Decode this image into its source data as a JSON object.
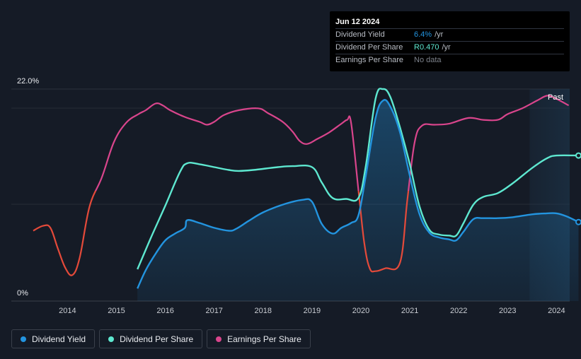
{
  "chart_data": {
    "type": "line",
    "y_axis": {
      "top_label": "22.0%",
      "bottom_label": "0%",
      "ylim": [
        0,
        22
      ]
    },
    "x_axis": {
      "ticks": [
        "2014",
        "2015",
        "2016",
        "2017",
        "2018",
        "2019",
        "2020",
        "2021",
        "2022",
        "2023",
        "2024"
      ],
      "xlim": [
        2013.3,
        2024.45
      ]
    },
    "past_label": "Past",
    "past_region_start": 2023.45,
    "series": [
      {
        "name": "Dividend Yield",
        "color": "#2394df",
        "fill": true,
        "end_marker": true,
        "points": [
          [
            2015.43,
            1.3
          ],
          [
            2015.6,
            3.2
          ],
          [
            2015.8,
            4.9
          ],
          [
            2016.0,
            6.3
          ],
          [
            2016.2,
            7.0
          ],
          [
            2016.4,
            7.6
          ],
          [
            2016.45,
            8.4
          ],
          [
            2016.7,
            8.1
          ],
          [
            2017.0,
            7.6
          ],
          [
            2017.3,
            7.3
          ],
          [
            2017.45,
            7.5
          ],
          [
            2017.7,
            8.3
          ],
          [
            2018.0,
            9.2
          ],
          [
            2018.4,
            10.0
          ],
          [
            2018.8,
            10.5
          ],
          [
            2019.0,
            10.3
          ],
          [
            2019.2,
            8.0
          ],
          [
            2019.42,
            7.0
          ],
          [
            2019.6,
            7.6
          ],
          [
            2019.8,
            8.1
          ],
          [
            2019.95,
            8.9
          ],
          [
            2020.1,
            13.0
          ],
          [
            2020.3,
            19.0
          ],
          [
            2020.45,
            20.8
          ],
          [
            2020.6,
            20.2
          ],
          [
            2020.8,
            17.5
          ],
          [
            2021.0,
            13.0
          ],
          [
            2021.2,
            9.0
          ],
          [
            2021.4,
            7.1
          ],
          [
            2021.6,
            6.6
          ],
          [
            2021.8,
            6.4
          ],
          [
            2021.95,
            6.3
          ],
          [
            2022.1,
            7.2
          ],
          [
            2022.3,
            8.5
          ],
          [
            2022.5,
            8.6
          ],
          [
            2022.8,
            8.6
          ],
          [
            2023.1,
            8.7
          ],
          [
            2023.5,
            9.0
          ],
          [
            2023.8,
            9.1
          ],
          [
            2024.0,
            9.1
          ],
          [
            2024.2,
            8.8
          ],
          [
            2024.45,
            8.2
          ]
        ]
      },
      {
        "name": "Dividend Per Share",
        "color": "#5ee8d0",
        "fill": false,
        "end_marker": true,
        "points": [
          [
            2015.43,
            3.3
          ],
          [
            2015.7,
            6.5
          ],
          [
            2016.0,
            9.9
          ],
          [
            2016.3,
            13.4
          ],
          [
            2016.45,
            14.3
          ],
          [
            2016.7,
            14.2
          ],
          [
            2017.0,
            13.9
          ],
          [
            2017.3,
            13.6
          ],
          [
            2017.5,
            13.5
          ],
          [
            2017.8,
            13.6
          ],
          [
            2018.3,
            13.9
          ],
          [
            2018.6,
            14.0
          ],
          [
            2019.0,
            13.9
          ],
          [
            2019.2,
            12.3
          ],
          [
            2019.42,
            10.7
          ],
          [
            2019.7,
            10.6
          ],
          [
            2019.95,
            10.7
          ],
          [
            2020.1,
            14.0
          ],
          [
            2020.3,
            21.0
          ],
          [
            2020.45,
            22.0
          ],
          [
            2020.6,
            21.2
          ],
          [
            2020.8,
            18.0
          ],
          [
            2021.0,
            14.2
          ],
          [
            2021.2,
            9.8
          ],
          [
            2021.4,
            7.4
          ],
          [
            2021.6,
            6.9
          ],
          [
            2021.8,
            6.8
          ],
          [
            2021.95,
            6.8
          ],
          [
            2022.1,
            8.1
          ],
          [
            2022.3,
            10.0
          ],
          [
            2022.5,
            10.8
          ],
          [
            2022.8,
            11.2
          ],
          [
            2023.1,
            12.2
          ],
          [
            2023.5,
            13.8
          ],
          [
            2023.8,
            14.8
          ],
          [
            2024.0,
            15.1
          ],
          [
            2024.45,
            15.1
          ]
        ]
      },
      {
        "name": "Earnings Per Share",
        "color": "#d9458c",
        "color_neg": "#e44a3a",
        "fill": false,
        "end_marker": false,
        "points": [
          [
            2013.3,
            7.3
          ],
          [
            2013.5,
            7.8
          ],
          [
            2013.65,
            7.6
          ],
          [
            2013.8,
            5.5
          ],
          [
            2013.95,
            3.5
          ],
          [
            2014.1,
            2.7
          ],
          [
            2014.25,
            4.5
          ],
          [
            2014.45,
            9.8
          ],
          [
            2014.7,
            12.8
          ],
          [
            2014.95,
            16.5
          ],
          [
            2015.2,
            18.5
          ],
          [
            2015.45,
            19.4
          ],
          [
            2015.6,
            19.8
          ],
          [
            2015.8,
            20.5
          ],
          [
            2015.95,
            20.3
          ],
          [
            2016.1,
            19.8
          ],
          [
            2016.4,
            19.1
          ],
          [
            2016.7,
            18.6
          ],
          [
            2016.85,
            18.3
          ],
          [
            2017.0,
            18.6
          ],
          [
            2017.2,
            19.3
          ],
          [
            2017.5,
            19.8
          ],
          [
            2017.9,
            20.0
          ],
          [
            2018.1,
            19.5
          ],
          [
            2018.4,
            18.6
          ],
          [
            2018.6,
            17.6
          ],
          [
            2018.75,
            16.6
          ],
          [
            2018.9,
            16.3
          ],
          [
            2019.1,
            16.8
          ],
          [
            2019.35,
            17.5
          ],
          [
            2019.6,
            18.4
          ],
          [
            2019.72,
            18.8
          ],
          [
            2019.8,
            18.5
          ],
          [
            2019.95,
            11.5
          ],
          [
            2020.07,
            6.0
          ],
          [
            2020.18,
            3.4
          ],
          [
            2020.3,
            3.1
          ],
          [
            2020.5,
            3.4
          ],
          [
            2020.8,
            4.0
          ],
          [
            2020.95,
            10.5
          ],
          [
            2021.1,
            16.5
          ],
          [
            2021.25,
            18.2
          ],
          [
            2021.5,
            18.3
          ],
          [
            2021.8,
            18.4
          ],
          [
            2022.2,
            19.0
          ],
          [
            2022.5,
            18.8
          ],
          [
            2022.8,
            18.8
          ],
          [
            2023.0,
            19.4
          ],
          [
            2023.3,
            20.0
          ],
          [
            2023.6,
            20.8
          ],
          [
            2023.8,
            21.3
          ],
          [
            2023.95,
            21.1
          ],
          [
            2024.25,
            20.3
          ]
        ]
      }
    ]
  },
  "tooltip": {
    "date": "Jun 12 2024",
    "rows": [
      {
        "label": "Dividend Yield",
        "value": "6.4%",
        "unit": " /yr"
      },
      {
        "label": "Dividend Per Share",
        "value": "R0.470",
        "unit": " /yr"
      },
      {
        "label": "Earnings Per Share",
        "value": "No data",
        "unit": ""
      }
    ]
  },
  "legend": [
    {
      "label": "Dividend Yield",
      "color": "#2394df"
    },
    {
      "label": "Dividend Per Share",
      "color": "#5ee8d0"
    },
    {
      "label": "Earnings Per Share",
      "color": "#d9458c"
    }
  ]
}
